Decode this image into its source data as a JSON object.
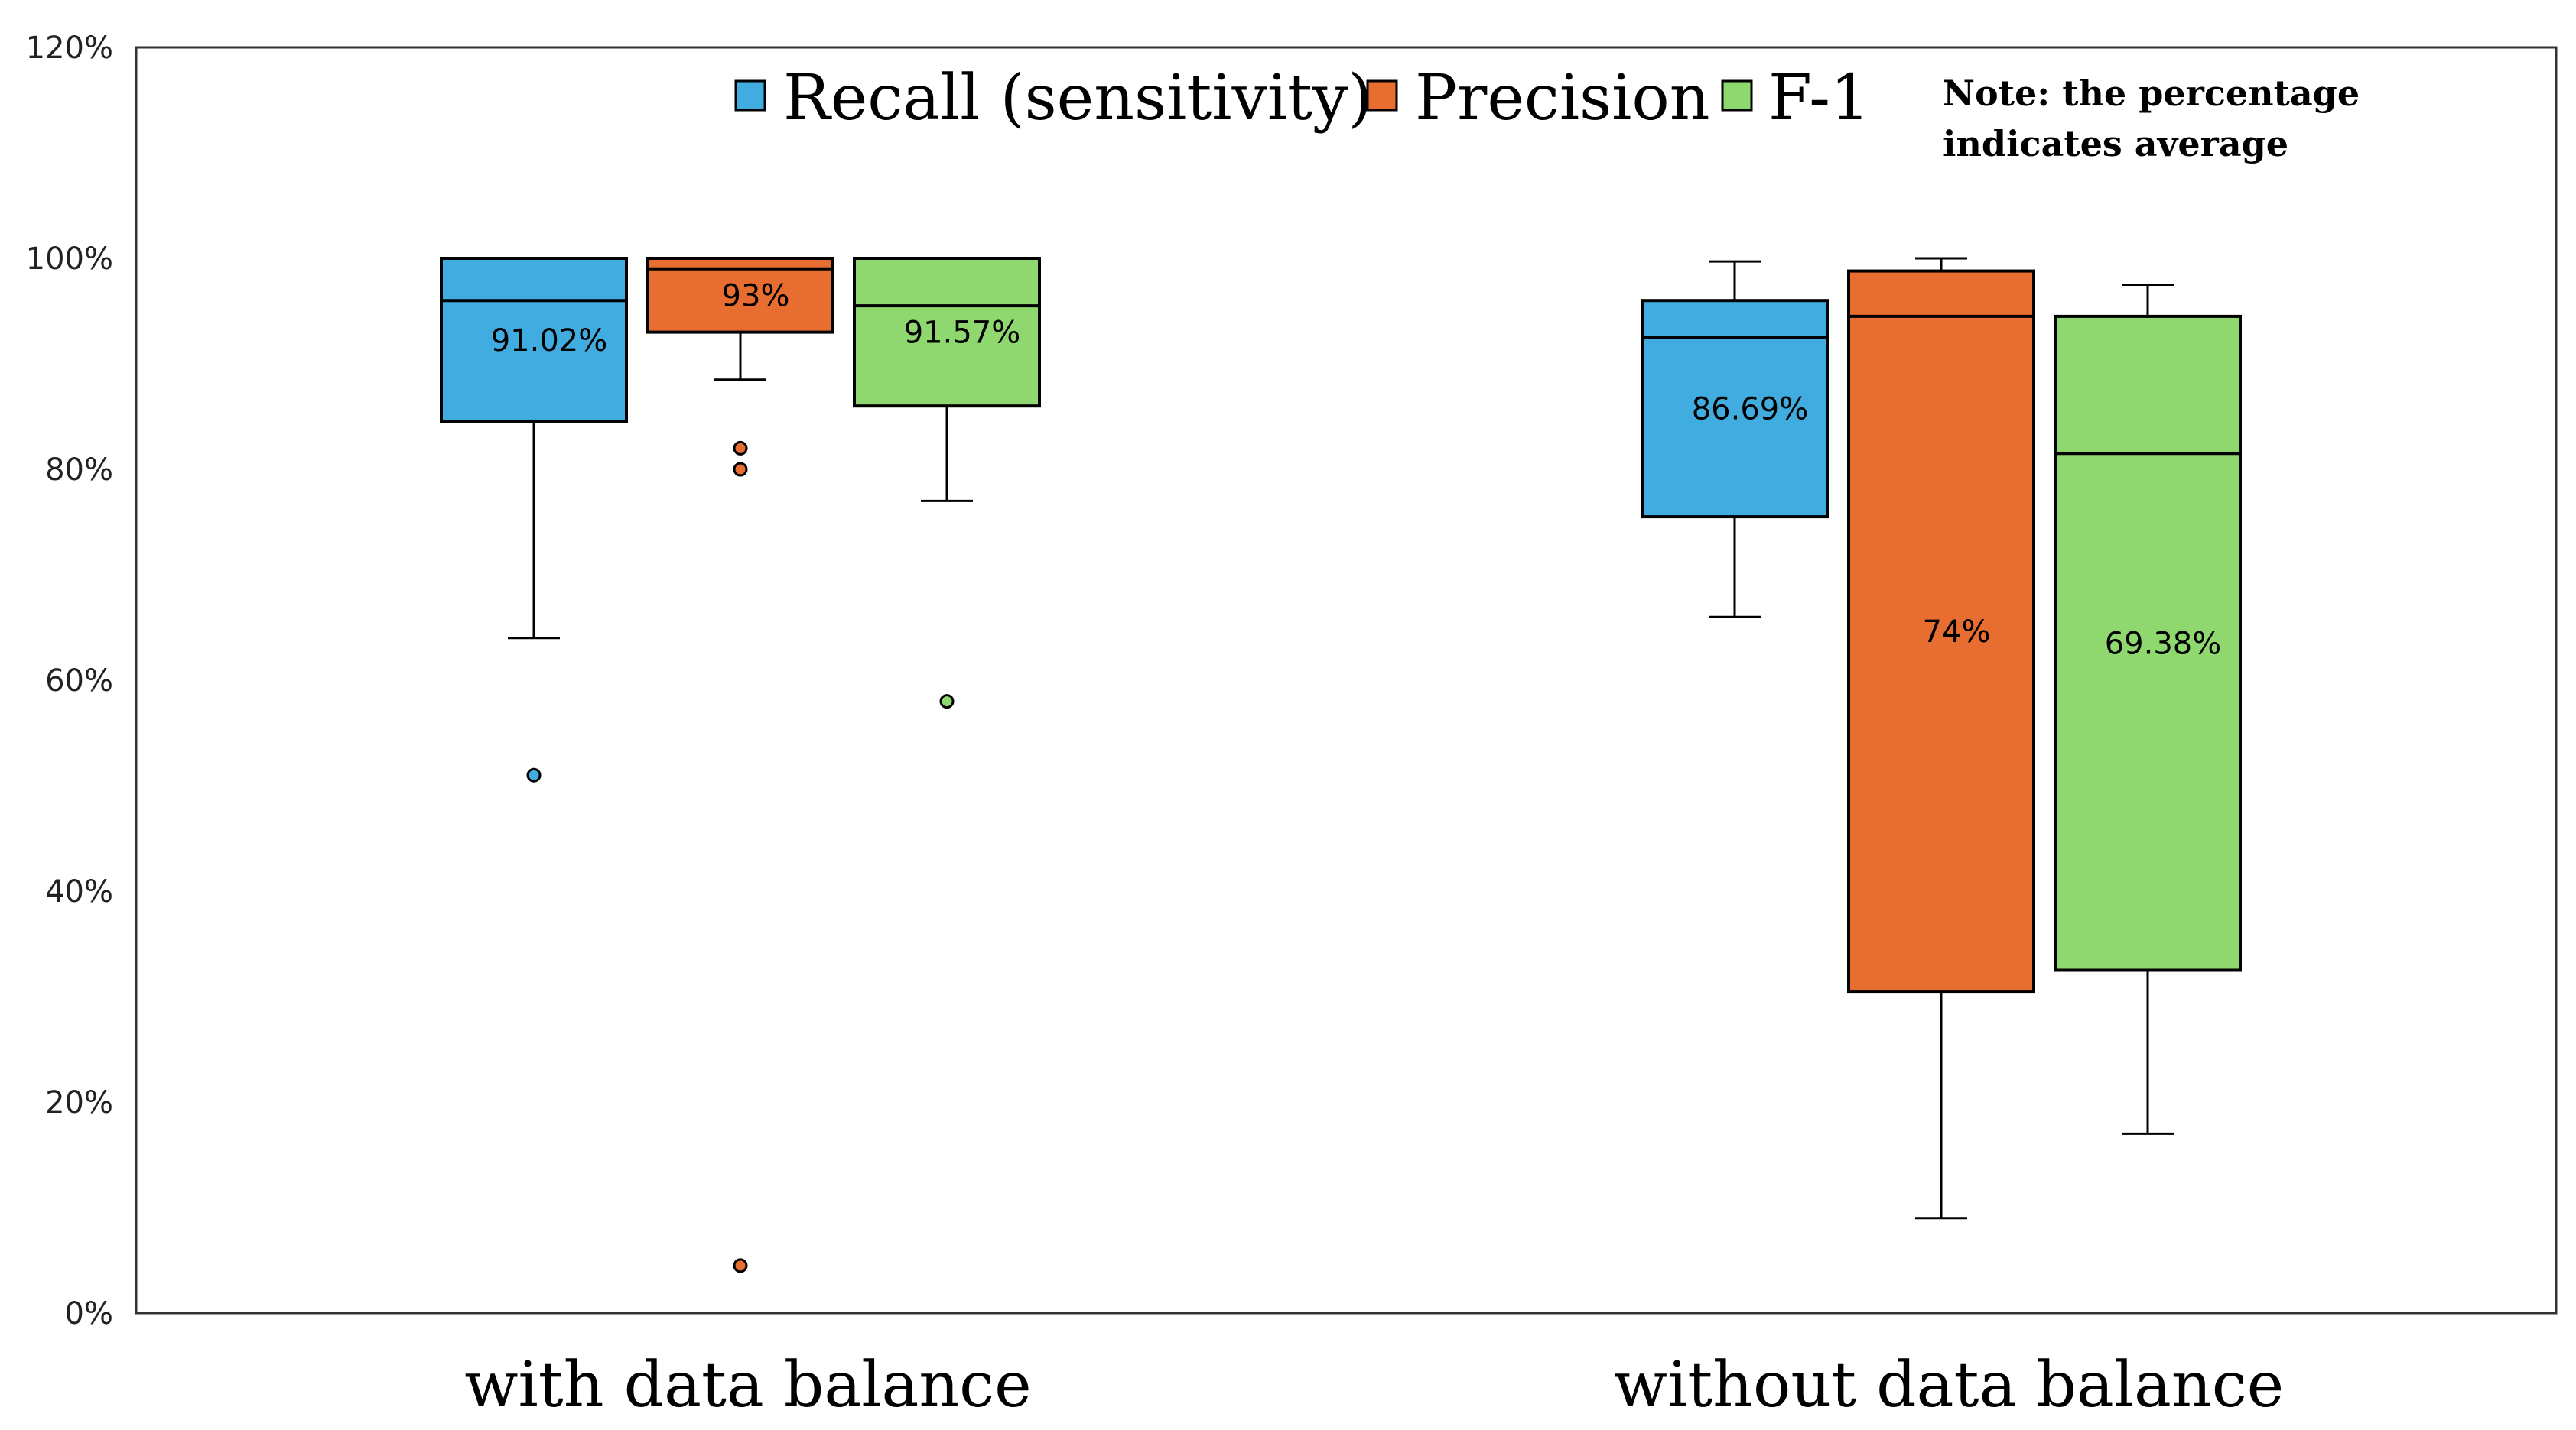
{
  "chart_data": {
    "type": "box",
    "ylim": [
      0,
      120
    ],
    "y_ticks": [
      0,
      20,
      40,
      60,
      80,
      100,
      120
    ],
    "y_tick_labels": [
      "0%",
      "20%",
      "40%",
      "60%",
      "80%",
      "100%",
      "120%"
    ],
    "grid": false,
    "legend_position": "top",
    "categories": [
      "with data balance",
      "without data balance"
    ],
    "note": [
      "Note: the percentage",
      "indicates average"
    ],
    "series": [
      {
        "name": "Recall (sensitivity)",
        "color": "#41ACDF",
        "boxes": [
          {
            "whisker_low": 64,
            "q1": 84.5,
            "median": 96,
            "q3": 100,
            "whisker_high": 100,
            "outliers": [
              51
            ],
            "average_label": "91.02%"
          },
          {
            "whisker_low": 66,
            "q1": 75.5,
            "median": 92.5,
            "q3": 96,
            "whisker_high": 99.7,
            "outliers": [],
            "average_label": "86.69%"
          }
        ]
      },
      {
        "name": "Precision",
        "color": "#E86D30",
        "boxes": [
          {
            "whisker_low": 88.5,
            "q1": 93,
            "median": 99,
            "q3": 100,
            "whisker_high": 100,
            "outliers": [
              82,
              80,
              4.5
            ],
            "average_label": "93%"
          },
          {
            "whisker_low": 9,
            "q1": 30.5,
            "median": 94.5,
            "q3": 98.8,
            "whisker_high": 100,
            "outliers": [],
            "average_label": "74%"
          }
        ]
      },
      {
        "name": "F-1",
        "color": "#8ED86F",
        "boxes": [
          {
            "whisker_low": 77,
            "q1": 86,
            "median": 95.5,
            "q3": 100,
            "whisker_high": 100,
            "outliers": [
              58
            ],
            "average_label": "91.57%"
          },
          {
            "whisker_low": 17,
            "q1": 32.5,
            "median": 81.5,
            "q3": 94.5,
            "whisker_high": 97.5,
            "outliers": [],
            "average_label": "69.38%"
          }
        ]
      }
    ]
  }
}
